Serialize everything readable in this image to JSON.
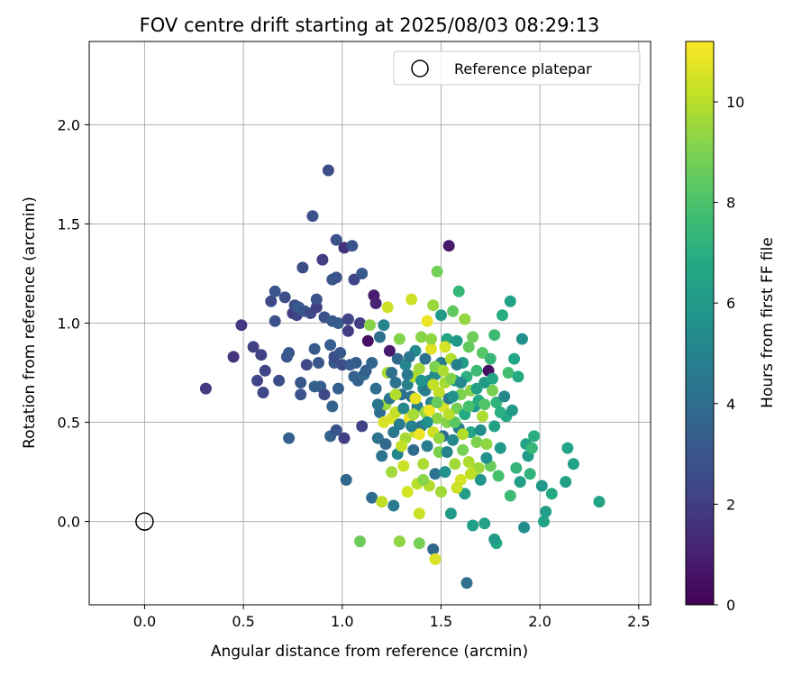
{
  "chart_data": {
    "type": "scatter",
    "title": "FOV centre drift starting at 2025/08/03 08:29:13",
    "xlabel": "Angular distance from reference (arcmin)",
    "ylabel": "Rotation from reference (arcmin)",
    "xlim": [
      -0.28,
      2.56
    ],
    "ylim": [
      -0.42,
      2.42
    ],
    "xticks": [
      0.0,
      0.5,
      1.0,
      1.5,
      2.0,
      2.5
    ],
    "xtick_labels": [
      "0.0",
      "0.5",
      "1.0",
      "1.5",
      "2.0",
      "2.5"
    ],
    "yticks": [
      0.0,
      0.5,
      1.0,
      1.5,
      2.0
    ],
    "ytick_labels": [
      "0.0",
      "0.5",
      "1.0",
      "1.5",
      "2.0"
    ],
    "grid": true,
    "legend": {
      "placement": "upper right",
      "entries": [
        {
          "label": "Reference platepar",
          "marker": "open-circle"
        }
      ]
    },
    "reference_point": {
      "x": 0.0,
      "y": 0.0
    },
    "colorbar": {
      "label": "Hours from first FF file",
      "colormap": "viridis",
      "range": [
        0,
        11.2
      ],
      "ticks": [
        0,
        2,
        4,
        6,
        8,
        10
      ],
      "tick_labels": [
        "0",
        "2",
        "4",
        "6",
        "8",
        "10"
      ]
    },
    "points": [
      [
        0.31,
        0.67,
        1.9
      ],
      [
        0.45,
        0.83,
        1.7
      ],
      [
        0.49,
        0.99,
        1.9
      ],
      [
        0.55,
        0.88,
        2.1
      ],
      [
        0.57,
        0.71,
        2.3
      ],
      [
        0.59,
        0.84,
        2.2
      ],
      [
        0.6,
        0.65,
        2.4
      ],
      [
        0.61,
        0.76,
        2.3
      ],
      [
        0.64,
        1.11,
        2.5
      ],
      [
        0.66,
        1.01,
        2.8
      ],
      [
        0.66,
        1.16,
        3.0
      ],
      [
        0.68,
        0.71,
        2.6
      ],
      [
        0.71,
        1.13,
        2.7
      ],
      [
        0.72,
        0.83,
        2.9
      ],
      [
        0.73,
        0.85,
        3.1
      ],
      [
        0.73,
        0.42,
        3.4
      ],
      [
        0.75,
        1.05,
        2.0
      ],
      [
        0.76,
        1.09,
        2.6
      ],
      [
        0.77,
        1.04,
        2.2
      ],
      [
        0.78,
        1.08,
        3.2
      ],
      [
        0.79,
        0.7,
        3.0
      ],
      [
        0.79,
        0.64,
        2.8
      ],
      [
        0.8,
        1.28,
        2.7
      ],
      [
        0.81,
        1.06,
        2.9
      ],
      [
        0.82,
        0.79,
        2.4
      ],
      [
        0.84,
        1.05,
        2.5
      ],
      [
        0.85,
        1.54,
        2.8
      ],
      [
        0.86,
        0.87,
        3.2
      ],
      [
        0.86,
        0.68,
        3.5
      ],
      [
        0.87,
        1.08,
        2.1
      ],
      [
        0.87,
        1.12,
        2.8
      ],
      [
        0.88,
        0.8,
        3.0
      ],
      [
        0.89,
        0.68,
        3.3
      ],
      [
        0.9,
        1.32,
        2.0
      ],
      [
        0.91,
        1.03,
        2.9
      ],
      [
        0.91,
        0.64,
        2.5
      ],
      [
        0.93,
        1.77,
        2.6
      ],
      [
        0.94,
        0.43,
        3.5
      ],
      [
        0.94,
        0.89,
        3.3
      ],
      [
        0.95,
        1.22,
        3.0
      ],
      [
        0.95,
        1.01,
        3.2
      ],
      [
        0.95,
        0.58,
        3.6
      ],
      [
        0.96,
        0.8,
        3.1
      ],
      [
        0.96,
        0.83,
        2.7
      ],
      [
        0.97,
        1.23,
        2.9
      ],
      [
        0.97,
        0.46,
        2.9
      ],
      [
        0.97,
        1.42,
        2.8
      ],
      [
        0.98,
        1.0,
        3.2
      ],
      [
        0.98,
        0.67,
        3.4
      ],
      [
        0.99,
        0.85,
        3.0
      ],
      [
        1.0,
        0.79,
        2.6
      ],
      [
        1.01,
        1.38,
        1.6
      ],
      [
        1.01,
        0.42,
        2.1
      ],
      [
        1.02,
        0.21,
        3.7
      ],
      [
        1.03,
        0.96,
        2.0
      ],
      [
        1.03,
        1.02,
        2.3
      ],
      [
        1.04,
        0.79,
        3.2
      ],
      [
        1.05,
        1.39,
        2.9
      ],
      [
        1.06,
        0.73,
        3.5
      ],
      [
        1.06,
        1.22,
        2.3
      ],
      [
        1.07,
        0.8,
        3.3
      ],
      [
        1.08,
        0.71,
        3.6
      ],
      [
        1.09,
        1.0,
        2.1
      ],
      [
        1.1,
        0.48,
        2.2
      ],
      [
        1.1,
        1.25,
        3.1
      ],
      [
        1.11,
        0.74,
        3.9
      ],
      [
        1.12,
        0.76,
        3.4
      ],
      [
        1.13,
        0.91,
        0.5
      ],
      [
        1.14,
        0.99,
        9.2
      ],
      [
        1.15,
        0.12,
        3.9
      ],
      [
        1.15,
        0.8,
        3.6
      ],
      [
        1.16,
        1.14,
        0.9
      ],
      [
        1.17,
        1.1,
        1.1
      ],
      [
        1.17,
        0.67,
        4.0
      ],
      [
        1.18,
        0.42,
        4.2
      ],
      [
        1.19,
        0.55,
        4.0
      ],
      [
        1.19,
        0.93,
        4.1
      ],
      [
        1.2,
        0.33,
        4.3
      ],
      [
        1.2,
        0.1,
        10.1
      ],
      [
        1.21,
        0.99,
        5.0
      ],
      [
        1.22,
        0.59,
        9.5
      ],
      [
        1.22,
        0.39,
        3.8
      ],
      [
        1.23,
        1.08,
        10.4
      ],
      [
        1.23,
        0.75,
        9.8
      ],
      [
        1.24,
        0.86,
        0.8
      ],
      [
        1.24,
        0.62,
        4.4
      ],
      [
        1.25,
        0.52,
        10.6
      ],
      [
        1.25,
        0.25,
        9.6
      ],
      [
        1.26,
        0.45,
        4.5
      ],
      [
        1.26,
        0.08,
        4.6
      ],
      [
        1.27,
        0.7,
        4.2
      ],
      [
        1.27,
        0.55,
        10.2
      ],
      [
        1.28,
        0.82,
        3.7
      ],
      [
        1.28,
        0.34,
        5.1
      ],
      [
        1.29,
        0.49,
        4.7
      ],
      [
        1.29,
        0.92,
        9.1
      ],
      [
        1.3,
        0.64,
        4.0
      ],
      [
        1.31,
        0.57,
        5.2
      ],
      [
        1.31,
        0.28,
        10.3
      ],
      [
        1.32,
        0.79,
        5.0
      ],
      [
        1.32,
        0.42,
        9.7
      ],
      [
        1.33,
        0.69,
        4.9
      ],
      [
        1.33,
        0.15,
        10.5
      ],
      [
        1.34,
        0.52,
        10.8
      ],
      [
        1.35,
        1.12,
        10.4
      ],
      [
        1.35,
        0.63,
        4.3
      ],
      [
        1.36,
        0.73,
        9.9
      ],
      [
        1.36,
        0.36,
        3.9
      ],
      [
        1.37,
        0.45,
        10.2
      ],
      [
        1.37,
        0.86,
        5.3
      ],
      [
        1.38,
        0.58,
        4.8
      ],
      [
        1.38,
        0.19,
        10.0
      ],
      [
        1.39,
        0.77,
        9.6
      ],
      [
        1.39,
        0.04,
        10.3
      ],
      [
        1.4,
        0.93,
        9.2
      ],
      [
        1.4,
        0.48,
        4.5
      ],
      [
        1.41,
        0.67,
        5.5
      ],
      [
        1.41,
        0.29,
        9.8
      ],
      [
        1.42,
        0.82,
        4.2
      ],
      [
        1.42,
        0.55,
        9.4
      ],
      [
        1.43,
        1.01,
        10.9
      ],
      [
        1.43,
        0.38,
        4.6
      ],
      [
        1.44,
        0.71,
        5.1
      ],
      [
        1.44,
        0.18,
        9.9
      ],
      [
        1.45,
        0.87,
        10.7
      ],
      [
        1.45,
        0.6,
        5.0
      ],
      [
        1.46,
        0.45,
        10.4
      ],
      [
        1.46,
        1.09,
        9.5
      ],
      [
        1.47,
        0.74,
        5.4
      ],
      [
        1.47,
        0.24,
        4.2
      ],
      [
        1.48,
        0.52,
        9.3
      ],
      [
        1.48,
        1.26,
        8.8
      ],
      [
        1.49,
        0.65,
        10.1
      ],
      [
        1.49,
        0.35,
        9.0
      ],
      [
        1.5,
        0.8,
        4.7
      ],
      [
        1.5,
        1.04,
        6.0
      ],
      [
        1.51,
        0.58,
        10.6
      ],
      [
        1.51,
        0.43,
        4.0
      ],
      [
        1.52,
        0.7,
        9.7
      ],
      [
        1.52,
        0.25,
        5.6
      ],
      [
        1.53,
        0.92,
        6.5
      ],
      [
        1.53,
        0.5,
        9.1
      ],
      [
        1.54,
        1.39,
        0.8
      ],
      [
        1.54,
        0.62,
        4.4
      ],
      [
        1.55,
        0.04,
        6.1
      ],
      [
        1.55,
        0.82,
        9.9
      ],
      [
        1.56,
        0.41,
        5.2
      ],
      [
        1.56,
        1.06,
        8.4
      ],
      [
        1.57,
        0.71,
        6.3
      ],
      [
        1.57,
        0.29,
        9.6
      ],
      [
        1.58,
        0.57,
        8.8
      ],
      [
        1.58,
        0.91,
        6.0
      ],
      [
        1.59,
        1.16,
        7.4
      ],
      [
        1.59,
        0.47,
        4.8
      ],
      [
        1.6,
        0.64,
        9.0
      ],
      [
        1.6,
        0.21,
        10.5
      ],
      [
        1.61,
        0.8,
        6.2
      ],
      [
        1.61,
        0.36,
        8.9
      ],
      [
        1.62,
        1.02,
        9.4
      ],
      [
        1.62,
        0.54,
        6.8
      ],
      [
        1.63,
        -0.31,
        4.1
      ],
      [
        1.63,
        0.73,
        7.1
      ],
      [
        1.64,
        0.3,
        9.8
      ],
      [
        1.64,
        0.88,
        8.5
      ],
      [
        1.65,
        0.45,
        6.6
      ],
      [
        1.65,
        0.66,
        9.2
      ],
      [
        1.66,
        -0.02,
        6.3
      ],
      [
        1.66,
        0.93,
        8.7
      ],
      [
        1.67,
        0.58,
        5.9
      ],
      [
        1.67,
        0.26,
        10.0
      ],
      [
        1.68,
        0.76,
        7.6
      ],
      [
        1.68,
        0.4,
        9.0
      ],
      [
        1.69,
        0.61,
        6.9
      ],
      [
        1.7,
        0.46,
        5.4
      ],
      [
        1.7,
        0.21,
        5.8
      ],
      [
        1.71,
        0.85,
        8.2
      ],
      [
        1.71,
        0.53,
        9.8
      ],
      [
        1.72,
        -0.01,
        6.5
      ],
      [
        1.72,
        0.7,
        6.1
      ],
      [
        1.73,
        0.39,
        9.3
      ],
      [
        1.74,
        0.76,
        0.5
      ],
      [
        1.75,
        0.28,
        8.6
      ],
      [
        1.75,
        0.82,
        7.4
      ],
      [
        1.76,
        0.66,
        8.9
      ],
      [
        1.77,
        0.94,
        7.6
      ],
      [
        1.77,
        0.48,
        6.4
      ],
      [
        1.78,
        -0.11,
        6.8
      ],
      [
        1.78,
        0.6,
        7.2
      ],
      [
        1.79,
        0.23,
        7.9
      ],
      [
        1.8,
        0.37,
        6.0
      ],
      [
        1.81,
        1.04,
        6.9
      ],
      [
        1.82,
        0.63,
        5.2
      ],
      [
        1.83,
        0.53,
        6.7
      ],
      [
        1.84,
        0.75,
        7.8
      ],
      [
        1.85,
        1.11,
        6.3
      ],
      [
        1.85,
        0.13,
        7.6
      ],
      [
        1.86,
        0.56,
        6.1
      ],
      [
        1.87,
        0.82,
        6.6
      ],
      [
        1.88,
        0.27,
        7.3
      ],
      [
        1.89,
        0.73,
        6.8
      ],
      [
        1.9,
        0.2,
        6.2
      ],
      [
        1.91,
        0.92,
        5.6
      ],
      [
        1.92,
        -0.03,
        5.4
      ],
      [
        1.93,
        0.39,
        6.5
      ],
      [
        1.94,
        0.33,
        6.1
      ],
      [
        1.95,
        0.24,
        7.2
      ],
      [
        1.96,
        0.37,
        7.4
      ],
      [
        1.97,
        0.43,
        7.0
      ],
      [
        2.01,
        0.18,
        5.9
      ],
      [
        2.02,
        0.0,
        6.5
      ],
      [
        2.03,
        0.05,
        6.2
      ],
      [
        2.06,
        0.14,
        6.8
      ],
      [
        2.13,
        0.2,
        6.3
      ],
      [
        2.14,
        0.37,
        6.6
      ],
      [
        2.17,
        0.29,
        6.4
      ],
      [
        2.3,
        0.1,
        6.5
      ],
      [
        1.09,
        -0.1,
        8.7
      ],
      [
        1.29,
        -0.1,
        9.3
      ],
      [
        1.39,
        -0.11,
        8.9
      ],
      [
        1.46,
        -0.14,
        3.8
      ],
      [
        1.47,
        -0.19,
        10.6
      ],
      [
        1.77,
        -0.09,
        6.1
      ],
      [
        1.45,
        0.92,
        9.3
      ],
      [
        1.52,
        0.88,
        10.5
      ],
      [
        1.47,
        0.78,
        9.0
      ],
      [
        1.42,
        0.66,
        4.6
      ],
      [
        1.36,
        0.54,
        9.7
      ],
      [
        1.3,
        0.38,
        10.2
      ],
      [
        1.34,
        0.83,
        4.4
      ],
      [
        1.4,
        0.71,
        5.8
      ],
      [
        1.55,
        0.72,
        9.1
      ],
      [
        1.58,
        0.79,
        4.9
      ],
      [
        1.44,
        0.56,
        10.9
      ],
      [
        1.49,
        0.42,
        9.4
      ],
      [
        1.53,
        0.35,
        5.0
      ],
      [
        1.57,
        0.5,
        8.3
      ],
      [
        1.61,
        0.44,
        9.9
      ],
      [
        1.64,
        0.58,
        7.9
      ],
      [
        1.68,
        0.67,
        6.4
      ],
      [
        1.72,
        0.59,
        8.1
      ],
      [
        1.76,
        0.72,
        6.6
      ],
      [
        1.8,
        0.55,
        7.0
      ],
      [
        1.73,
        0.32,
        5.7
      ],
      [
        1.69,
        0.27,
        9.5
      ],
      [
        1.65,
        0.24,
        10.1
      ],
      [
        1.62,
        0.14,
        6.2
      ],
      [
        1.58,
        0.17,
        10.3
      ],
      [
        1.5,
        0.15,
        9.6
      ],
      [
        1.41,
        0.21,
        9.2
      ],
      [
        1.37,
        0.62,
        10.8
      ],
      [
        1.33,
        0.74,
        4.5
      ],
      [
        1.27,
        0.64,
        9.9
      ],
      [
        1.25,
        0.75,
        4.1
      ],
      [
        1.21,
        0.5,
        10.5
      ],
      [
        1.18,
        0.59,
        4.4
      ],
      [
        1.48,
        0.6,
        8.6
      ],
      [
        1.54,
        0.54,
        10.0
      ],
      [
        1.6,
        0.7,
        5.3
      ],
      [
        1.46,
        0.69,
        10.2
      ],
      [
        1.43,
        0.5,
        5.6
      ],
      [
        1.39,
        0.44,
        10.9
      ],
      [
        1.35,
        0.48,
        4.9
      ],
      [
        1.51,
        0.76,
        9.8
      ],
      [
        1.56,
        0.63,
        5.7
      ]
    ]
  }
}
